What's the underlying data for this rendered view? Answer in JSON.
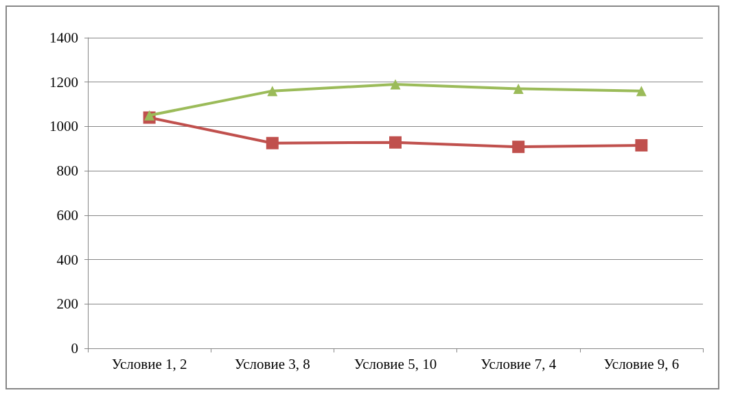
{
  "chart_data": {
    "type": "line",
    "categories": [
      "Условие 1, 2",
      "Условие 3, 8",
      "Условие 5, 10",
      "Условие 7, 4",
      "Условие 9, 6"
    ],
    "series": [
      {
        "color": "#9bbb59",
        "marker": "triangle",
        "values": [
          1050,
          1160,
          1190,
          1170,
          1160
        ]
      },
      {
        "color": "#c0504d",
        "marker": "square",
        "values": [
          1040,
          925,
          928,
          908,
          915
        ]
      }
    ],
    "ylim": [
      0,
      1400
    ],
    "yticks": [
      0,
      200,
      400,
      600,
      800,
      1000,
      1200,
      1400
    ],
    "grid": "y"
  }
}
